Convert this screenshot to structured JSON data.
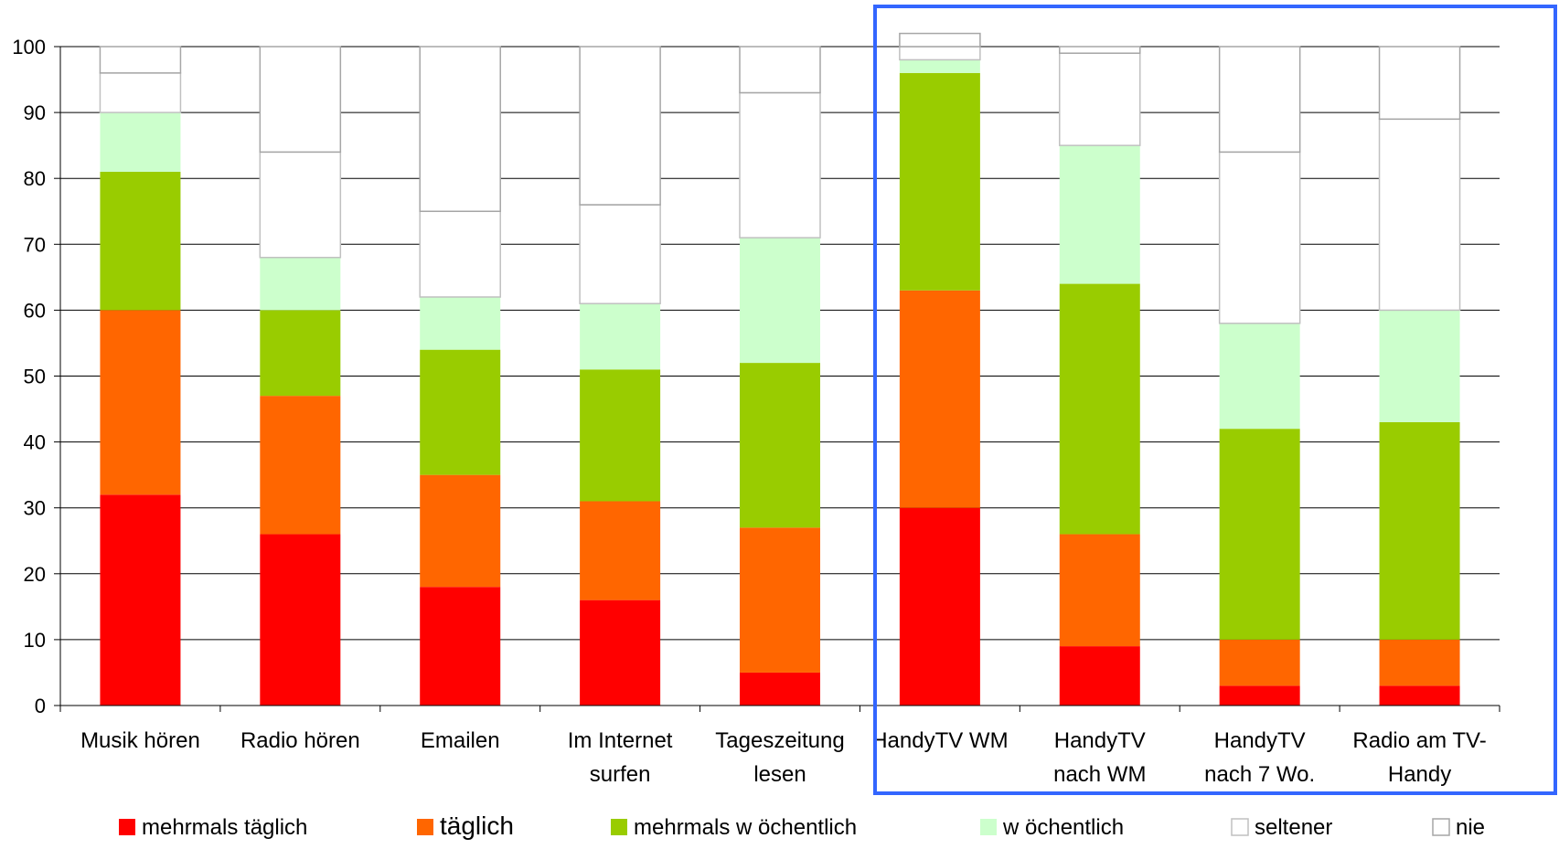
{
  "chart_data": {
    "type": "bar",
    "stacked": true,
    "title": "",
    "xlabel": "",
    "ylabel": "",
    "ylim": [
      0,
      100
    ],
    "yticks": [
      0,
      10,
      20,
      30,
      40,
      50,
      60,
      70,
      80,
      90,
      100
    ],
    "grid": true,
    "legend_position": "bottom",
    "categories": [
      [
        "Musik hören"
      ],
      [
        "Radio hören"
      ],
      [
        "Emailen"
      ],
      [
        "Im Internet",
        "surfen"
      ],
      [
        "Tageszeitung",
        "lesen"
      ],
      [
        "HandyTV  WM"
      ],
      [
        "HandyTV",
        "nach WM"
      ],
      [
        "HandyTV",
        "nach 7 Wo."
      ],
      [
        "Radio am TV-",
        "Handy"
      ]
    ],
    "series": [
      {
        "name": "mehrmals täglich",
        "color": "#ff0000",
        "stroke": "none",
        "values": [
          32,
          26,
          18,
          16,
          5,
          30,
          9,
          3,
          3
        ]
      },
      {
        "name": "täglich",
        "color": "#ff6600",
        "stroke": "none",
        "values": [
          28,
          21,
          17,
          15,
          22,
          33,
          17,
          7,
          7
        ]
      },
      {
        "name": "mehrmals w öchentlich",
        "color": "#99cc00",
        "stroke": "none",
        "values": [
          21,
          13,
          19,
          20,
          25,
          33,
          38,
          32,
          33
        ]
      },
      {
        "name": "w öchentlich",
        "color": "#ccffcc",
        "stroke": "none",
        "values": [
          9,
          8,
          8,
          10,
          19,
          2,
          21,
          16,
          17
        ]
      },
      {
        "name": "seltener",
        "color": "#ffffff",
        "stroke": "#c0c0c0",
        "values": [
          6,
          16,
          13,
          15,
          22,
          2,
          14,
          26,
          29
        ]
      },
      {
        "name": "nie",
        "color": "#ffffff",
        "stroke": "#a6a6a6",
        "values": [
          4,
          16,
          25,
          24,
          7,
          2,
          1,
          16,
          11
        ]
      }
    ],
    "highlight": {
      "from_category": 5,
      "to_category": 8,
      "color": "#3366ff"
    }
  }
}
